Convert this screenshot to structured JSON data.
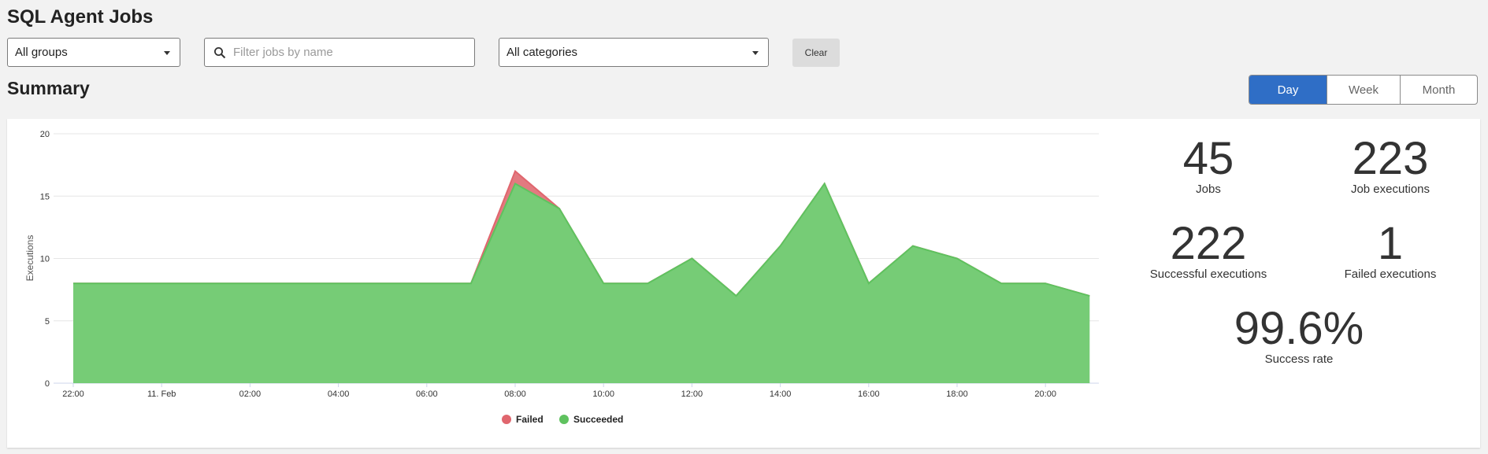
{
  "header": {
    "title": "SQL Agent Jobs"
  },
  "filters": {
    "group_select": "All groups",
    "search_placeholder": "Filter jobs by name",
    "category_select": "All categories",
    "clear_label": "Clear"
  },
  "summary": {
    "title": "Summary",
    "periods": [
      {
        "label": "Day",
        "active": true
      },
      {
        "label": "Week",
        "active": false
      },
      {
        "label": "Month",
        "active": false
      }
    ]
  },
  "stats": {
    "jobs": {
      "value": "45",
      "label": "Jobs"
    },
    "job_executions": {
      "value": "223",
      "label": "Job executions"
    },
    "successful": {
      "value": "222",
      "label": "Successful executions"
    },
    "failed": {
      "value": "1",
      "label": "Failed executions"
    },
    "success_rate": {
      "value": "99.6%",
      "label": "Success rate"
    }
  },
  "colors": {
    "failed": "#e0666e",
    "succeeded": "#5fc25f",
    "succeeded_fill": "#76cc76",
    "accent": "#2f6ec6"
  },
  "chart_data": {
    "type": "area",
    "stacked": true,
    "ylabel": "Executions",
    "ylim": [
      0,
      20
    ],
    "yticks": [
      0,
      5,
      10,
      15,
      20
    ],
    "x_hours": [
      22,
      23,
      0,
      1,
      2,
      3,
      4,
      5,
      6,
      7,
      8,
      9,
      10,
      11,
      12,
      13,
      14,
      15,
      16,
      17,
      18,
      19,
      20,
      21
    ],
    "xtick_labels": [
      "22:00",
      "11. Feb",
      "02:00",
      "04:00",
      "06:00",
      "08:00",
      "10:00",
      "12:00",
      "14:00",
      "16:00",
      "18:00",
      "20:00"
    ],
    "series": [
      {
        "name": "Failed",
        "color": "#e0666e",
        "values": [
          0,
          0,
          0,
          0,
          0,
          0,
          0,
          0,
          0,
          0,
          1,
          0,
          0,
          0,
          0,
          0,
          0,
          0,
          0,
          0,
          0,
          0,
          0,
          0
        ]
      },
      {
        "name": "Succeeded",
        "color": "#5fc25f",
        "values": [
          8,
          8,
          8,
          8,
          8,
          8,
          8,
          8,
          8,
          8,
          16,
          14,
          8,
          8,
          10,
          7,
          11,
          16,
          8,
          11,
          10,
          8,
          8,
          7
        ]
      }
    ],
    "grid": true,
    "legend": "bottom"
  }
}
